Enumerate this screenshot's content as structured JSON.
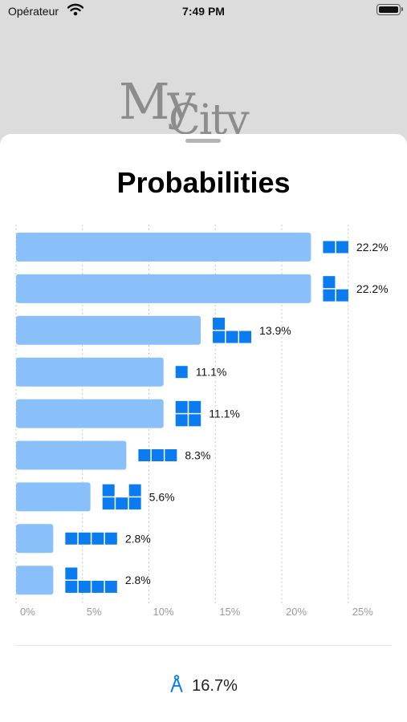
{
  "status_bar": {
    "carrier": "Opérateur",
    "time": "7:49 PM"
  },
  "background": {
    "logo_line1": "My",
    "logo_line2": "City"
  },
  "sheet": {
    "title": "Probabilities"
  },
  "accent_color": "#0a7cf0",
  "bar_color": "#8ac0f9",
  "chart_data": {
    "type": "bar",
    "orientation": "horizontal",
    "xlim": [
      0,
      25
    ],
    "ticks": [
      "0%",
      "5%",
      "10%",
      "15%",
      "20%",
      "25%"
    ],
    "grid": true,
    "values": [
      22.2,
      22.2,
      13.9,
      11.1,
      11.1,
      8.3,
      5.6,
      2.8,
      2.8
    ],
    "labels": [
      "22.2%",
      "22.2%",
      "13.9%",
      "11.1%",
      "11.1%",
      "8.3%",
      "5.6%",
      "2.8%",
      "2.8%"
    ],
    "shapes": [
      "horizontal-domino",
      "l-tromino",
      "l-tetromino",
      "monomino",
      "square-tetromino",
      "straight-tromino",
      "u-pentomino",
      "straight-tetromino",
      "l-tetromino-long"
    ]
  },
  "footer": {
    "icon": "compass-icon",
    "value": "16.7%"
  }
}
